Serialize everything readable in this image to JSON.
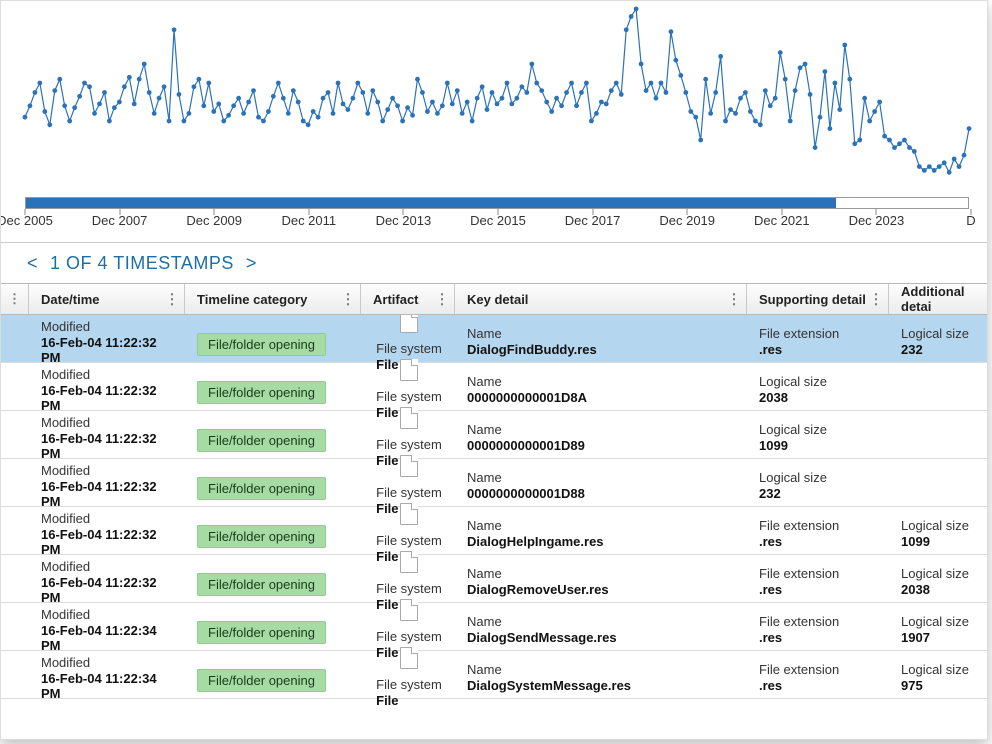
{
  "chart": {
    "type": "line",
    "line_color": "#2b72b9",
    "marker_color": "#2b72b9",
    "marker_radius": 2.4,
    "line_width": 1.2,
    "background_color": "#ffffff",
    "scrollbar_fill_color": "#2b72b9",
    "scrollbar_fill_pct": 86,
    "xaxis_ticks": [
      "Dec 2005",
      "Dec 2007",
      "Dec 2009",
      "Dec 2011",
      "Dec 2013",
      "Dec 2015",
      "Dec 2017",
      "Dec 2019",
      "Dec 2021",
      "Dec 2023",
      "D"
    ],
    "xaxis_fontsize": 13,
    "ylim": [
      0,
      100
    ],
    "values": [
      42,
      48,
      55,
      60,
      45,
      38,
      56,
      62,
      48,
      40,
      47,
      53,
      60,
      58,
      44,
      49,
      55,
      40,
      47,
      50,
      58,
      63,
      49,
      62,
      70,
      55,
      44,
      52,
      58,
      40,
      88,
      54,
      40,
      44,
      58,
      62,
      48,
      60,
      45,
      49,
      40,
      43,
      48,
      52,
      44,
      50,
      56,
      42,
      40,
      45,
      53,
      60,
      52,
      44,
      56,
      50,
      40,
      38,
      45,
      42,
      52,
      55,
      44,
      60,
      49,
      46,
      52,
      60,
      55,
      44,
      56,
      50,
      40,
      46,
      52,
      48,
      40,
      47,
      43,
      62,
      55,
      45,
      50,
      44,
      48,
      60,
      49,
      56,
      44,
      50,
      40,
      52,
      58,
      46,
      55,
      49,
      52,
      60,
      49,
      52,
      58,
      55,
      70,
      60,
      56,
      50,
      45,
      52,
      48,
      55,
      60,
      48,
      55,
      60,
      40,
      44,
      50,
      49,
      56,
      60,
      54,
      88,
      95,
      99,
      70,
      56,
      60,
      52,
      60,
      55,
      87,
      72,
      64,
      55,
      45,
      42,
      30,
      62,
      44,
      55,
      74,
      40,
      46,
      44,
      52,
      55,
      45,
      40,
      38,
      56,
      48,
      52,
      76,
      62,
      40,
      56,
      68,
      70,
      54,
      26,
      42,
      66,
      36,
      60,
      46,
      80,
      62,
      28,
      30,
      52,
      40,
      45,
      50,
      32,
      30,
      26,
      28,
      30,
      26,
      24,
      16,
      14,
      16,
      14,
      16,
      18,
      13,
      20,
      16,
      22,
      36
    ]
  },
  "header": {
    "color": "#1e6ea7",
    "prev": "<",
    "text": "1 OF 4 TIMESTAMPS",
    "next": ">"
  },
  "columns": [
    {
      "key": "dt",
      "label": "Date/time"
    },
    {
      "key": "cat",
      "label": "Timeline category"
    },
    {
      "key": "art",
      "label": "Artifact"
    },
    {
      "key": "key",
      "label": "Key detail"
    },
    {
      "key": "sup",
      "label": "Supporting detail"
    },
    {
      "key": "add",
      "label": "Additional detai"
    }
  ],
  "category_badge": {
    "text": "File/folder opening",
    "bg": "#a6dca4",
    "border": "#8fcf8d",
    "color": "#1a3b19"
  },
  "rows": [
    {
      "selected": true,
      "dt_label": "Modified",
      "dt_value": "16-Feb-04 11:22:32 PM",
      "art_label": "File system",
      "art_value": "File",
      "key_label": "Name",
      "key_value": "DialogFindBuddy.res",
      "sup_label": "File extension",
      "sup_value": ".res",
      "add_label": "Logical size",
      "add_value": "232"
    },
    {
      "selected": false,
      "dt_label": "Modified",
      "dt_value": "16-Feb-04 11:22:32 PM",
      "art_label": "File system",
      "art_value": "File",
      "key_label": "Name",
      "key_value": "0000000000001D8A",
      "sup_label": "Logical size",
      "sup_value": "2038",
      "add_label": "",
      "add_value": ""
    },
    {
      "selected": false,
      "dt_label": "Modified",
      "dt_value": "16-Feb-04 11:22:32 PM",
      "art_label": "File system",
      "art_value": "File",
      "key_label": "Name",
      "key_value": "0000000000001D89",
      "sup_label": "Logical size",
      "sup_value": "1099",
      "add_label": "",
      "add_value": ""
    },
    {
      "selected": false,
      "dt_label": "Modified",
      "dt_value": "16-Feb-04 11:22:32 PM",
      "art_label": "File system",
      "art_value": "File",
      "key_label": "Name",
      "key_value": "0000000000001D88",
      "sup_label": "Logical size",
      "sup_value": "232",
      "add_label": "",
      "add_value": ""
    },
    {
      "selected": false,
      "dt_label": "Modified",
      "dt_value": "16-Feb-04 11:22:32 PM",
      "art_label": "File system",
      "art_value": "File",
      "key_label": "Name",
      "key_value": "DialogHelpIngame.res",
      "sup_label": "File extension",
      "sup_value": ".res",
      "add_label": "Logical size",
      "add_value": "1099"
    },
    {
      "selected": false,
      "dt_label": "Modified",
      "dt_value": "16-Feb-04 11:22:32 PM",
      "art_label": "File system",
      "art_value": "File",
      "key_label": "Name",
      "key_value": "DialogRemoveUser.res",
      "sup_label": "File extension",
      "sup_value": ".res",
      "add_label": "Logical size",
      "add_value": "2038"
    },
    {
      "selected": false,
      "dt_label": "Modified",
      "dt_value": "16-Feb-04 11:22:34 PM",
      "art_label": "File system",
      "art_value": "File",
      "key_label": "Name",
      "key_value": "DialogSendMessage.res",
      "sup_label": "File extension",
      "sup_value": ".res",
      "add_label": "Logical size",
      "add_value": "1907"
    },
    {
      "selected": false,
      "dt_label": "Modified",
      "dt_value": "16-Feb-04 11:22:34 PM",
      "art_label": "File system",
      "art_value": "File",
      "key_label": "Name",
      "key_value": "DialogSystemMessage.res",
      "sup_label": "File extension",
      "sup_value": ".res",
      "add_label": "Logical size",
      "add_value": "975"
    }
  ]
}
